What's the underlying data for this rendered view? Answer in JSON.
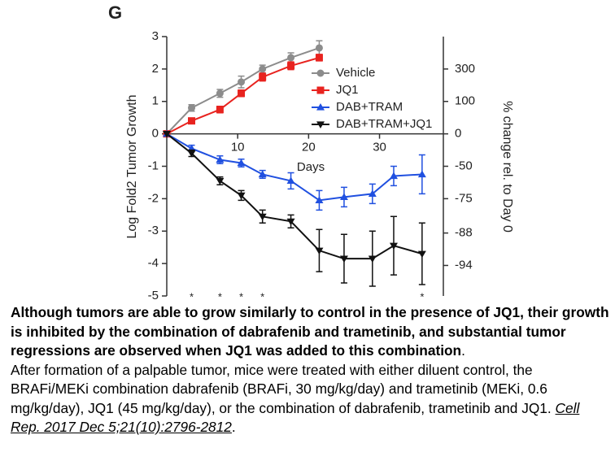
{
  "chart_data": {
    "type": "line",
    "panel_label": "G",
    "ylabel": "Log Fold2 Tumor Growth",
    "y2label": "% change rel. to Day 0",
    "xlabel": "Days",
    "xlim": [
      0,
      39
    ],
    "xticks": [
      10,
      20,
      30
    ],
    "ylim": [
      -5,
      3
    ],
    "yticks": [
      3,
      2,
      1,
      0,
      -1,
      -2,
      -3,
      -4,
      -5
    ],
    "y2lim": [
      700,
      -96.875
    ],
    "y2ticks": [
      300,
      100,
      0,
      -50,
      -75,
      -88,
      -94
    ],
    "y2scale": "log2-fold",
    "legend": "upper right",
    "series": [
      {
        "name": "Vehicle",
        "color": "#8c8c8c",
        "marker": "circle",
        "x": [
          0,
          3.5,
          7.5,
          10.5,
          13.5,
          17.5,
          21.5
        ],
        "values": [
          0,
          0.8,
          1.25,
          1.6,
          2.0,
          2.35,
          2.65
        ],
        "errors": [
          0,
          0.1,
          0.12,
          0.18,
          0.12,
          0.15,
          0.22
        ]
      },
      {
        "name": "JQ1",
        "color": "#e8231f",
        "marker": "square",
        "x": [
          0,
          3.5,
          7.5,
          10.5,
          13.5,
          17.5,
          21.5
        ],
        "values": [
          0,
          0.4,
          0.75,
          1.25,
          1.75,
          2.1,
          2.35
        ],
        "errors": [
          0,
          0.08,
          0.1,
          0.1,
          0.12,
          0.12,
          0.1
        ]
      },
      {
        "name": "DAB+TRAM",
        "color": "#2050e0",
        "marker": "triangle",
        "x": [
          0,
          3.5,
          7.5,
          10.5,
          13.5,
          17.5,
          21.5,
          25,
          29,
          32,
          36
        ],
        "values": [
          0,
          -0.45,
          -0.8,
          -0.9,
          -1.25,
          -1.45,
          -2.05,
          -1.95,
          -1.85,
          -1.3,
          -1.25
        ],
        "errors": [
          0,
          0.1,
          0.12,
          0.12,
          0.12,
          0.25,
          0.3,
          0.3,
          0.3,
          0.3,
          0.6
        ]
      },
      {
        "name": "DAB+TRAM+JQ1",
        "color": "#111111",
        "marker": "triangle-down",
        "x": [
          0,
          3.5,
          7.5,
          10.5,
          13.5,
          17.5,
          21.5,
          25,
          29,
          32,
          36
        ],
        "values": [
          0,
          -0.6,
          -1.45,
          -1.9,
          -2.55,
          -2.7,
          -3.6,
          -3.85,
          -3.85,
          -3.45,
          -3.7
        ],
        "errors": [
          0,
          0.1,
          0.12,
          0.15,
          0.2,
          0.2,
          0.65,
          0.75,
          0.85,
          0.9,
          0.95
        ]
      }
    ],
    "annotations": [
      {
        "x": 3.5,
        "text": "*"
      },
      {
        "x": 7.5,
        "text": "*"
      },
      {
        "x": 10.5,
        "text": "*"
      },
      {
        "x": 13.5,
        "text": "*"
      },
      {
        "x": 36,
        "text": "*"
      }
    ]
  },
  "caption": {
    "summary": "Although tumors are able to grow similarly to control in the presence of JQ1, their growth is inhibited by the combination of dabrafenib and trametinib, and substantial tumor regressions are observed when JQ1 was added to this combination",
    "summary_end": ".",
    "details": "After formation of a palpable tumor, mice were treated with either diluent control, the BRAFi/MEKi combination dabrafenib (BRAFi, 30 mg/kg/day) and trametinib (MEKi, 0.6 mg/kg/day), JQ1 (45 mg/kg/day), or the combination of dabrafenib, trametinib and JQ1.",
    "citation": "Cell Rep. 2017 Dec 5;21(10):2796-2812",
    "citation_end": "."
  }
}
